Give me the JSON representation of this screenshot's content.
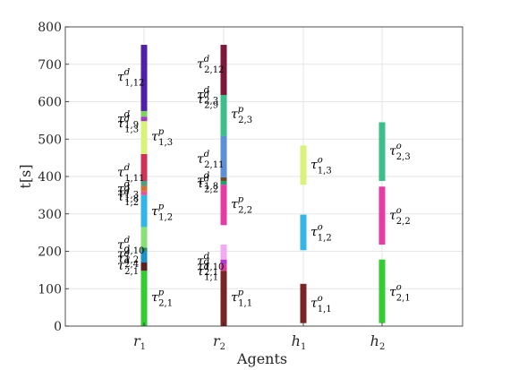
{
  "chart_data": {
    "type": "bar",
    "title": "",
    "xlabel": "Agents",
    "ylabel": "t[s]",
    "ylim": [
      0,
      800
    ],
    "yticks": [
      "0",
      "100",
      "200",
      "300",
      "400",
      "500",
      "600",
      "700",
      "800"
    ],
    "grid": true,
    "legend": "none",
    "categories": [
      "r1",
      "r2",
      "h1",
      "h2"
    ],
    "category_labels": [
      {
        "main": "r",
        "sub": "1"
      },
      {
        "main": "r",
        "sub": "2"
      },
      {
        "main": "h",
        "sub": "1"
      },
      {
        "main": "h",
        "sub": "2"
      }
    ],
    "segments": [
      {
        "agent": "r1",
        "start": 0,
        "end": 148,
        "color": "#33cc33",
        "sup": "p",
        "sub": "2,1"
      },
      {
        "agent": "r1",
        "start": 148,
        "end": 170,
        "color": "#5c2020",
        "sup": "d",
        "sub": "2,1"
      },
      {
        "agent": "r1",
        "start": 170,
        "end": 200,
        "color": "#1e90c8",
        "sup": "d",
        "sub": "2,4"
      },
      {
        "agent": "r1",
        "start": 200,
        "end": 210,
        "color": "#2a8f5a",
        "sup": "d",
        "sub": "1,2"
      },
      {
        "agent": "r1",
        "start": 210,
        "end": 265,
        "color": "#88e077",
        "sup": "d",
        "sub": "2,10"
      },
      {
        "agent": "r1",
        "start": 265,
        "end": 350,
        "color": "#33b5e5",
        "sup": "p",
        "sub": "1,2"
      },
      {
        "agent": "r1",
        "start": 350,
        "end": 360,
        "color": "#e0559e",
        "sup": "d",
        "sub": "1,2"
      },
      {
        "agent": "r1",
        "start": 360,
        "end": 375,
        "color": "#d86f34",
        "sup": "d",
        "sub": "1,8"
      },
      {
        "agent": "r1",
        "start": 375,
        "end": 388,
        "color": "#4c9e7e",
        "sup": "d",
        "sub": "1,3"
      },
      {
        "agent": "r1",
        "start": 388,
        "end": 460,
        "color": "#cf3255",
        "sup": "d",
        "sub": "1,11"
      },
      {
        "agent": "r1",
        "start": 460,
        "end": 548,
        "color": "#d9f27a",
        "sup": "p",
        "sub": "1,3"
      },
      {
        "agent": "r1",
        "start": 548,
        "end": 560,
        "color": "#a33ac8",
        "sup": "d",
        "sub": "1,3"
      },
      {
        "agent": "r1",
        "start": 560,
        "end": 575,
        "color": "#7dd35e",
        "sup": "d",
        "sub": "1,9"
      },
      {
        "agent": "r1",
        "start": 575,
        "end": 752,
        "color": "#5021a8",
        "sup": "d",
        "sub": "1,12"
      },
      {
        "agent": "r2",
        "start": 0,
        "end": 148,
        "color": "#7a2424",
        "sup": "p",
        "sub": "1,1"
      },
      {
        "agent": "r2",
        "start": 148,
        "end": 165,
        "color": "#d63a9a",
        "sup": "d",
        "sub": "1,1"
      },
      {
        "agent": "r2",
        "start": 165,
        "end": 178,
        "color": "#b33ac9",
        "sup": "d",
        "sub": "2,1"
      },
      {
        "agent": "r2",
        "start": 178,
        "end": 218,
        "color": "#f2aaf2",
        "sup": "d",
        "sub": "1,10"
      },
      {
        "agent": "r2",
        "start": 218,
        "end": 270,
        "color": "#ffffff",
        "sup": "",
        "sub": ""
      },
      {
        "agent": "r2",
        "start": 270,
        "end": 378,
        "color": "#e63aa6",
        "sup": "p",
        "sub": "2,2"
      },
      {
        "agent": "r2",
        "start": 378,
        "end": 388,
        "color": "#2a9d68",
        "sup": "d",
        "sub": "2,2"
      },
      {
        "agent": "r2",
        "start": 388,
        "end": 398,
        "color": "#6c4d25",
        "sup": "d",
        "sub": "1,8"
      },
      {
        "agent": "r2",
        "start": 398,
        "end": 508,
        "color": "#5b8fd6",
        "sup": "d",
        "sub": "2,11"
      },
      {
        "agent": "r2",
        "start": 508,
        "end": 618,
        "color": "#3cbf8a",
        "sup": "p",
        "sub": "2,3"
      },
      {
        "agent": "r2",
        "start": 618,
        "end": 752,
        "color": "#7d1838",
        "sup": "d",
        "sub": "2,12"
      },
      {
        "agent": "h1",
        "start": 8,
        "end": 113,
        "color": "#7a2424",
        "sup": "o",
        "sub": "1,1"
      },
      {
        "agent": "h1",
        "start": 203,
        "end": 298,
        "color": "#33b5e5",
        "sup": "o",
        "sub": "1,2"
      },
      {
        "agent": "h1",
        "start": 378,
        "end": 483,
        "color": "#d9f27a",
        "sup": "o",
        "sub": "1,3"
      },
      {
        "agent": "h2",
        "start": 8,
        "end": 178,
        "color": "#33cc33",
        "sup": "o",
        "sub": "2,1"
      },
      {
        "agent": "h2",
        "start": 218,
        "end": 373,
        "color": "#e63aa6",
        "sup": "o",
        "sub": "2,2"
      },
      {
        "agent": "h2",
        "start": 388,
        "end": 545,
        "color": "#3cbf8a",
        "sup": "o",
        "sub": "2,3"
      }
    ],
    "labels": [
      {
        "agent": "r1",
        "side": "right",
        "y": 75,
        "sup": "p",
        "sub": "2,1"
      },
      {
        "agent": "r1",
        "side": "left",
        "y": 160,
        "sup": "d",
        "sub": "2,1"
      },
      {
        "agent": "r1",
        "side": "left",
        "y": 180,
        "sup": "d",
        "sub": "2,4"
      },
      {
        "agent": "r1",
        "side": "left",
        "y": 192,
        "sup": "d",
        "sub": "1,2"
      },
      {
        "agent": "r1",
        "side": "left",
        "y": 215,
        "sup": "d",
        "sub": "2,10"
      },
      {
        "agent": "r1",
        "side": "right",
        "y": 305,
        "sup": "p",
        "sub": "1,2"
      },
      {
        "agent": "r1",
        "side": "left",
        "y": 345,
        "sup": "d",
        "sub": "1,2"
      },
      {
        "agent": "r1",
        "side": "left",
        "y": 355,
        "sup": "d",
        "sub": "1,8"
      },
      {
        "agent": "r1",
        "side": "left",
        "y": 365,
        "sup": "d",
        "sub": "1,3"
      },
      {
        "agent": "r1",
        "side": "left",
        "y": 410,
        "sup": "d",
        "sub": "1,11"
      },
      {
        "agent": "r1",
        "side": "right",
        "y": 505,
        "sup": "p",
        "sub": "1,3"
      },
      {
        "agent": "r1",
        "side": "left",
        "y": 540,
        "sup": "d",
        "sub": "1,3"
      },
      {
        "agent": "r1",
        "side": "left",
        "y": 552,
        "sup": "d",
        "sub": "1,9"
      },
      {
        "agent": "r1",
        "side": "left",
        "y": 665,
        "sup": "d",
        "sub": "1,12"
      },
      {
        "agent": "r2",
        "side": "right",
        "y": 75,
        "sup": "p",
        "sub": "1,1"
      },
      {
        "agent": "r2",
        "side": "left",
        "y": 145,
        "sup": "d",
        "sub": "1,1"
      },
      {
        "agent": "r2",
        "side": "left",
        "y": 158,
        "sup": "d",
        "sub": "2,1"
      },
      {
        "agent": "r2",
        "side": "left",
        "y": 172,
        "sup": "d",
        "sub": "1,10"
      },
      {
        "agent": "r2",
        "side": "right",
        "y": 325,
        "sup": "p",
        "sub": "2,2"
      },
      {
        "agent": "r2",
        "side": "left",
        "y": 380,
        "sup": "d",
        "sub": "2,2"
      },
      {
        "agent": "r2",
        "side": "left",
        "y": 388,
        "sup": "d",
        "sub": "1,8"
      },
      {
        "agent": "r2",
        "side": "left",
        "y": 445,
        "sup": "d",
        "sub": "2,11"
      },
      {
        "agent": "r2",
        "side": "right",
        "y": 565,
        "sup": "p",
        "sub": "2,3"
      },
      {
        "agent": "r2",
        "side": "left",
        "y": 605,
        "sup": "d",
        "sub": "2,9"
      },
      {
        "agent": "r2",
        "side": "left",
        "y": 617,
        "sup": "d",
        "sub": "2,3"
      },
      {
        "agent": "r2",
        "side": "left",
        "y": 700,
        "sup": "d",
        "sub": "2,12"
      },
      {
        "agent": "h1",
        "side": "right",
        "y": 60,
        "sup": "o",
        "sub": "1,1"
      },
      {
        "agent": "h1",
        "side": "right",
        "y": 250,
        "sup": "o",
        "sub": "1,2"
      },
      {
        "agent": "h1",
        "side": "right",
        "y": 430,
        "sup": "o",
        "sub": "1,3"
      },
      {
        "agent": "h2",
        "side": "right",
        "y": 90,
        "sup": "o",
        "sub": "2,1"
      },
      {
        "agent": "h2",
        "side": "right",
        "y": 295,
        "sup": "o",
        "sub": "2,2"
      },
      {
        "agent": "h2",
        "side": "right",
        "y": 467,
        "sup": "o",
        "sub": "2,3"
      }
    ]
  }
}
